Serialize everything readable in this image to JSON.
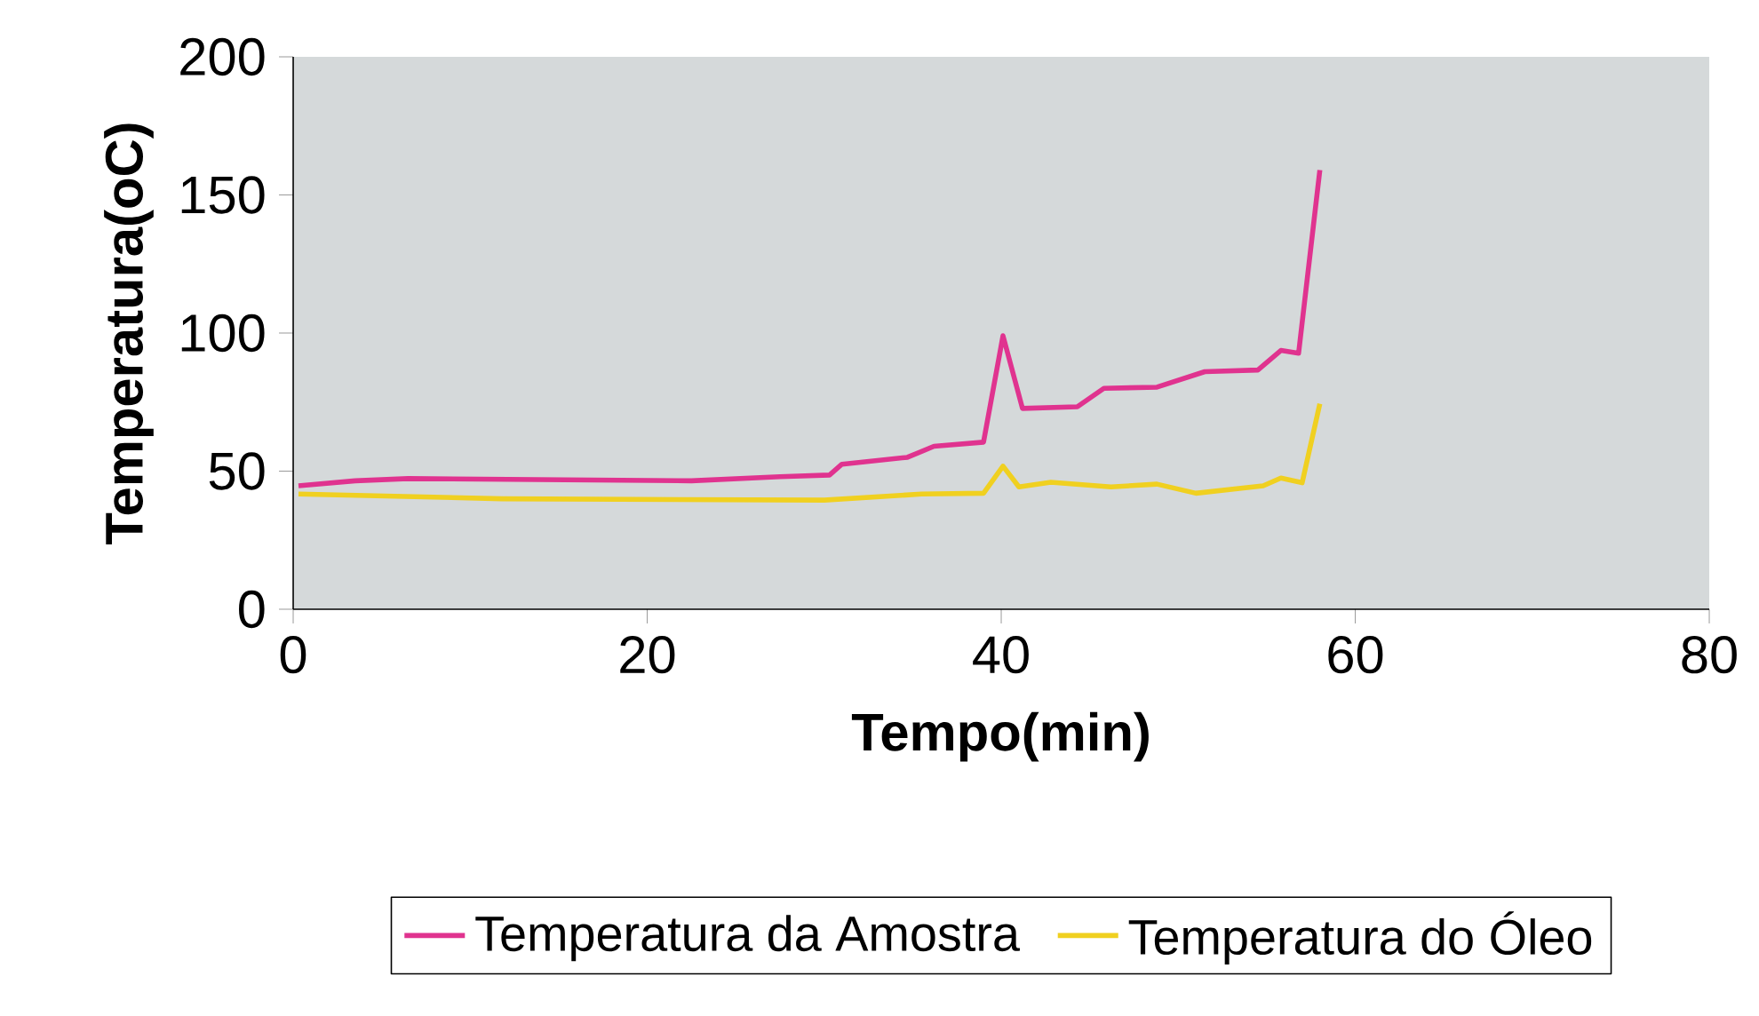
{
  "chart_data": {
    "type": "line",
    "xlabel": "Tempo(min)",
    "ylabel": "Temperatura(oC)",
    "xlim": [
      0,
      80
    ],
    "xticks": [
      0,
      20,
      40,
      60,
      80
    ],
    "ylim": [
      0,
      200
    ],
    "yticks": [
      0,
      50,
      100,
      150,
      200
    ],
    "grid": false,
    "legend": "bottom",
    "marker": "none",
    "line_style": "solid",
    "series": [
      {
        "name": "Temperatura da Amostra",
        "color": "#e0338f",
        "x": [
          0.3,
          3.5,
          6.5,
          22.5,
          27.5,
          30.3,
          31,
          34.7,
          36.2,
          39,
          40.1,
          41.2,
          44.3,
          45.8,
          48.8,
          51.5,
          54.5,
          55.8,
          56.8,
          58
        ],
        "values": [
          44.7,
          46.5,
          47.3,
          46.5,
          48,
          48.6,
          52.5,
          55,
          59,
          60.5,
          99,
          72.7,
          73.3,
          80,
          80.4,
          86,
          86.6,
          93.7,
          92.7,
          159
        ]
      },
      {
        "name": "Temperatura do Óleo",
        "color": "#f0d020",
        "x": [
          0.3,
          11.8,
          30,
          35.5,
          39,
          40.1,
          41,
          42.8,
          46.2,
          48.8,
          51,
          54.8,
          55.8,
          57,
          58
        ],
        "values": [
          41.7,
          40,
          39.5,
          41.7,
          42,
          51.8,
          44.3,
          46,
          44.3,
          45.3,
          42,
          44.7,
          47.5,
          45.8,
          74.4
        ]
      }
    ]
  }
}
